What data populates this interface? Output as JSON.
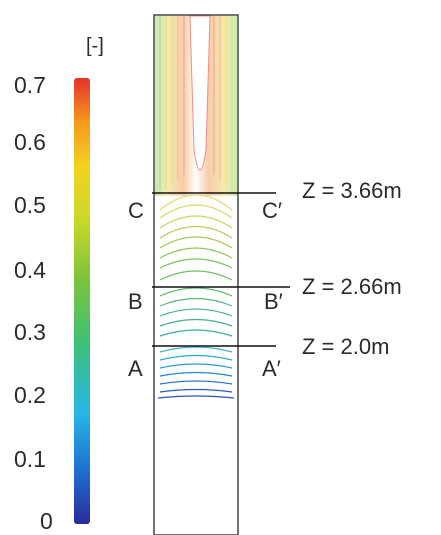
{
  "colorbar": {
    "unit": "[-]",
    "ticks": [
      "0.7",
      "0.6",
      "0.5",
      "0.4",
      "0.3",
      "0.2",
      "0.1",
      "0"
    ],
    "min": 0,
    "max": 0.7,
    "colors": [
      "#2a2a9c",
      "#1f6fd0",
      "#29b6e6",
      "#3cc07a",
      "#7dc33a",
      "#c8d92a",
      "#f3d21f",
      "#f59a1e",
      "#e6322a"
    ]
  },
  "sections": [
    {
      "left": "C",
      "right": "C′",
      "label": "Z = 3.66m"
    },
    {
      "left": "B",
      "right": "B′",
      "label": "Z = 2.66m"
    },
    {
      "left": "A",
      "right": "A′",
      "label": "Z = 2.0m"
    }
  ]
}
